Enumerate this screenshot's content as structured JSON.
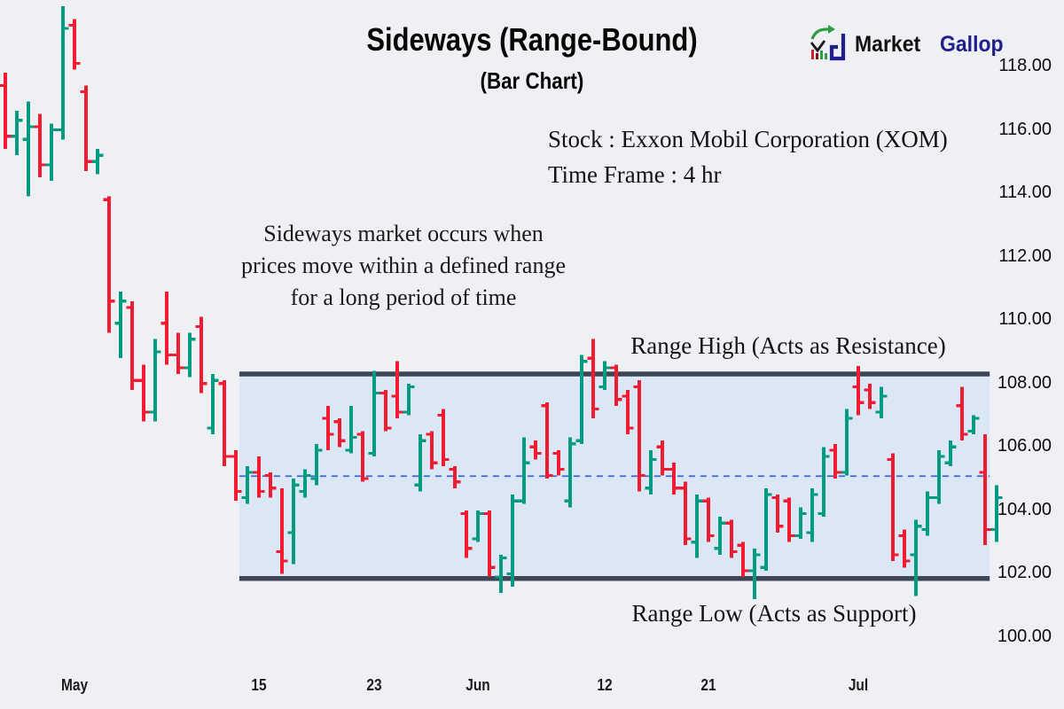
{
  "title": "Sideways (Range-Bound)",
  "subtitle": "(Bar Chart)",
  "logo": {
    "text_primary": "Market",
    "text_secondary": "Gallop"
  },
  "info": {
    "stock_line": "Stock : Exxon Mobil Corporation (XOM)",
    "timeframe_line": "Time Frame : 4 hr"
  },
  "annotation": {
    "line1": "Sideways market occurs when",
    "line2": "prices move within a defined range",
    "line3": "for a long period of time"
  },
  "range_labels": {
    "high": "Range High (Acts as Resistance)",
    "low": "Range Low (Acts as Support)"
  },
  "colors": {
    "background": "#eef0f4",
    "up_bar": "#009b80",
    "down_bar": "#f21b31",
    "band_fill": "#dbe7f5",
    "band_line": "#3e4656",
    "mid_dashed_line": "#3c67cf",
    "logo_navy": "#20208c",
    "logo_green": "#2e9e41",
    "logo_red": "#cf1f2f"
  },
  "chart_data": {
    "type": "bar",
    "subtype": "ohlc",
    "title": "Sideways (Range-Bound)",
    "instrument": "Exxon Mobil Corporation (XOM)",
    "timeframe": "4 hr",
    "y_axis": {
      "min": 100,
      "max": 118,
      "tick_step": 2,
      "tick_values": [
        118,
        116,
        114,
        112,
        110,
        108,
        106,
        104,
        102,
        100
      ],
      "tick_labels": [
        "118.00",
        "116.00",
        "114.00",
        "112.00",
        "110.00",
        "108.00",
        "106.00",
        "104.00",
        "102.00",
        "100.00"
      ]
    },
    "x_axis": {
      "ticks": [
        {
          "label": "May",
          "bar_index": 6
        },
        {
          "label": "15",
          "bar_index": 22
        },
        {
          "label": "23",
          "bar_index": 32
        },
        {
          "label": "Jun",
          "bar_index": 41
        },
        {
          "label": "12",
          "bar_index": 52
        },
        {
          "label": "21",
          "bar_index": 61
        },
        {
          "label": "Jul",
          "bar_index": 74
        }
      ]
    },
    "range_band": {
      "high": 108.3,
      "low": 101.85,
      "mid_dashed": 105.08,
      "start_bar_index": 20.3,
      "end_bar_index": 85.4
    },
    "bars_format": [
      "open",
      "high",
      "low",
      "close"
    ],
    "bars": [
      [
        117.4,
        117.8,
        115.4,
        115.8
      ],
      [
        115.8,
        116.6,
        115.2,
        116.3
      ],
      [
        115.7,
        116.9,
        113.9,
        116.1
      ],
      [
        116.1,
        116.5,
        114.5,
        114.9
      ],
      [
        114.9,
        116.2,
        114.4,
        116.0
      ],
      [
        116.0,
        119.9,
        115.7,
        119.2
      ],
      [
        119.3,
        119.5,
        117.9,
        118.1
      ],
      [
        117.2,
        117.4,
        114.7,
        115.0
      ],
      [
        115.0,
        115.4,
        114.6,
        115.2
      ],
      [
        113.8,
        113.9,
        109.6,
        110.6
      ],
      [
        109.9,
        110.9,
        108.8,
        110.6
      ],
      [
        110.4,
        110.6,
        107.8,
        108.1
      ],
      [
        108.1,
        108.6,
        106.8,
        107.1
      ],
      [
        107.1,
        109.4,
        106.8,
        109.0
      ],
      [
        109.9,
        110.9,
        108.6,
        108.9
      ],
      [
        108.9,
        109.6,
        108.3,
        108.5
      ],
      [
        108.5,
        109.6,
        108.2,
        109.4
      ],
      [
        109.8,
        110.1,
        107.7,
        108.0
      ],
      [
        106.6,
        108.3,
        106.4,
        108.1
      ],
      [
        108.0,
        108.1,
        105.4,
        105.7
      ],
      [
        105.7,
        105.9,
        104.3,
        104.6
      ],
      [
        104.4,
        105.4,
        104.2,
        105.2
      ],
      [
        105.2,
        105.7,
        104.4,
        104.6
      ],
      [
        105.1,
        105.2,
        104.4,
        104.7
      ],
      [
        102.7,
        104.7,
        102.0,
        102.4
      ],
      [
        103.3,
        105.0,
        102.3,
        104.8
      ],
      [
        104.6,
        105.3,
        104.4,
        105.1
      ],
      [
        105.0,
        106.1,
        104.8,
        105.9
      ],
      [
        106.9,
        107.3,
        105.9,
        106.4
      ],
      [
        106.8,
        106.9,
        106.0,
        106.2
      ],
      [
        105.9,
        107.3,
        105.8,
        106.3
      ],
      [
        106.4,
        106.5,
        104.9,
        105.0
      ],
      [
        105.8,
        108.4,
        105.7,
        107.7
      ],
      [
        107.7,
        107.8,
        106.5,
        106.6
      ],
      [
        107.6,
        108.7,
        106.9,
        107.1
      ],
      [
        107.1,
        108.0,
        107.0,
        107.9
      ],
      [
        104.8,
        106.4,
        104.6,
        106.2
      ],
      [
        106.4,
        106.5,
        105.3,
        105.5
      ],
      [
        107.0,
        107.2,
        105.4,
        105.6
      ],
      [
        105.3,
        105.4,
        104.7,
        104.9
      ],
      [
        103.9,
        104.0,
        102.5,
        102.8
      ],
      [
        103.1,
        104.0,
        103.0,
        103.9
      ],
      [
        103.9,
        104.0,
        101.9,
        102.2
      ],
      [
        101.9,
        102.6,
        101.4,
        102.5
      ],
      [
        102.0,
        104.5,
        101.6,
        104.3
      ],
      [
        104.3,
        106.3,
        104.2,
        105.5
      ],
      [
        106.0,
        106.2,
        105.6,
        105.8
      ],
      [
        107.3,
        107.4,
        105.0,
        105.1
      ],
      [
        105.8,
        105.9,
        105.1,
        105.3
      ],
      [
        104.3,
        106.3,
        104.1,
        106.1
      ],
      [
        106.2,
        108.9,
        106.1,
        108.7
      ],
      [
        108.8,
        109.4,
        106.9,
        107.2
      ],
      [
        107.9,
        108.7,
        107.8,
        108.5
      ],
      [
        108.5,
        108.6,
        107.3,
        107.5
      ],
      [
        107.6,
        107.8,
        106.4,
        106.6
      ],
      [
        107.9,
        108.1,
        104.6,
        105.1
      ],
      [
        104.7,
        105.9,
        104.5,
        105.6
      ],
      [
        106.0,
        106.2,
        105.1,
        105.3
      ],
      [
        105.3,
        105.5,
        104.5,
        104.7
      ],
      [
        104.7,
        104.9,
        102.9,
        103.1
      ],
      [
        103.0,
        104.5,
        102.5,
        104.3
      ],
      [
        104.3,
        104.4,
        103.0,
        103.2
      ],
      [
        102.8,
        103.8,
        102.6,
        103.6
      ],
      [
        103.6,
        103.7,
        102.5,
        102.7
      ],
      [
        102.9,
        103.0,
        101.9,
        102.1
      ],
      [
        102.1,
        102.8,
        101.2,
        102.6
      ],
      [
        102.2,
        104.7,
        102.1,
        104.5
      ],
      [
        104.4,
        104.5,
        103.3,
        103.5
      ],
      [
        104.3,
        104.4,
        103.0,
        103.2
      ],
      [
        103.2,
        104.1,
        103.1,
        103.9
      ],
      [
        103.3,
        104.7,
        103.0,
        104.5
      ],
      [
        103.9,
        106.0,
        103.8,
        105.7
      ],
      [
        105.9,
        106.1,
        105.0,
        105.2
      ],
      [
        105.2,
        107.2,
        105.1,
        106.9
      ],
      [
        107.9,
        108.55,
        107.0,
        107.4
      ],
      [
        107.8,
        108.0,
        107.2,
        107.4
      ],
      [
        107.1,
        107.9,
        106.9,
        107.6
      ],
      [
        105.6,
        105.8,
        102.4,
        102.6
      ],
      [
        103.2,
        103.4,
        102.2,
        102.4
      ],
      [
        102.6,
        103.7,
        101.3,
        103.5
      ],
      [
        103.4,
        104.6,
        103.2,
        104.4
      ],
      [
        104.4,
        105.9,
        104.2,
        105.7
      ],
      [
        105.5,
        106.2,
        105.4,
        106.0
      ],
      [
        107.3,
        107.9,
        106.2,
        106.4
      ],
      [
        106.5,
        107.0,
        106.4,
        106.9
      ],
      [
        105.2,
        106.4,
        102.9,
        103.4
      ],
      [
        103.4,
        104.8,
        103.0,
        104.4
      ]
    ]
  }
}
